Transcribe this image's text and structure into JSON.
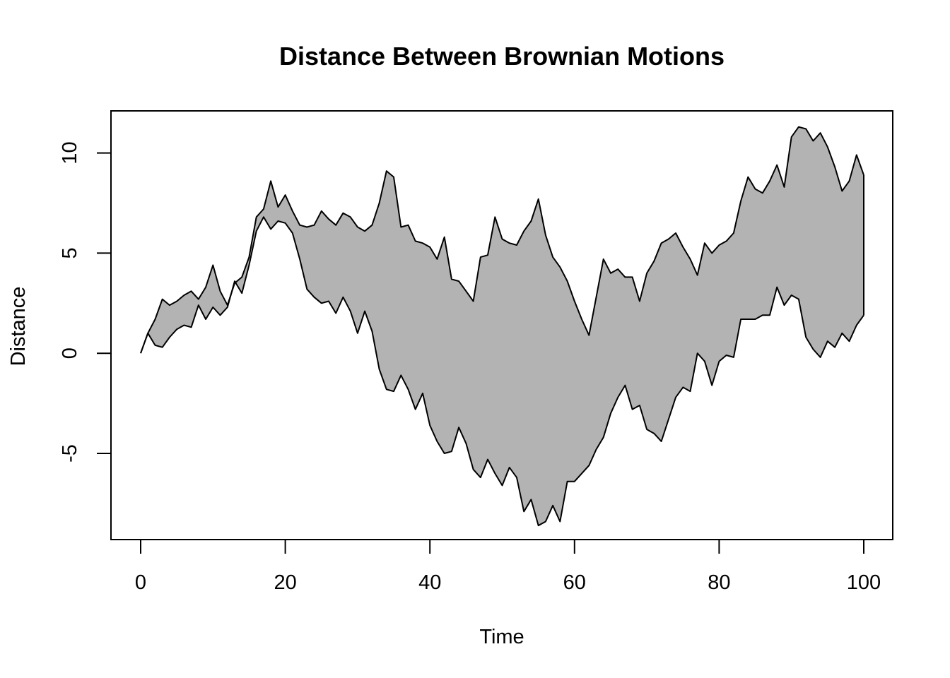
{
  "chart_data": {
    "type": "area",
    "title": "Distance Between Brownian Motions",
    "xlabel": "Time",
    "ylabel": "Distance",
    "xlim": [
      0,
      100
    ],
    "ylim": [
      -9.3,
      12.1
    ],
    "x_ticks": [
      0,
      20,
      40,
      60,
      80,
      100
    ],
    "y_ticks": [
      -5,
      0,
      5,
      10
    ],
    "x_tick_labels": [
      "0",
      "20",
      "40",
      "60",
      "80",
      "100"
    ],
    "y_tick_labels": [
      "-5",
      "0",
      "5",
      "10"
    ],
    "grid": false,
    "legend": "none",
    "fill_color": "#b3b3b3",
    "line_color": "#000000",
    "series": [
      {
        "values": [
          0,
          1.0,
          1.7,
          2.7,
          2.4,
          2.6,
          2.9,
          3.1,
          2.7,
          3.3,
          4.4,
          3.1,
          2.4,
          3.5,
          3.8,
          4.8,
          6.8,
          7.2,
          8.6,
          7.3,
          7.9,
          7.1,
          6.4,
          6.3,
          6.4,
          7.1,
          6.7,
          6.4,
          7.0,
          6.8,
          6.3,
          6.1,
          6.4,
          7.5,
          9.1,
          8.8,
          6.3,
          6.4,
          5.6,
          5.5,
          5.3,
          4.7,
          5.8,
          3.7,
          3.6,
          3.1,
          2.6,
          4.8,
          4.9,
          6.8,
          5.7,
          5.5,
          5.4,
          6.1,
          6.6,
          7.7,
          5.9,
          4.8,
          4.3,
          3.6,
          2.6,
          1.7,
          0.9,
          2.8,
          4.7,
          4.0,
          4.2,
          3.8,
          3.8,
          2.6,
          4.0,
          4.6,
          5.5,
          5.7,
          6.0,
          5.3,
          4.7,
          3.9,
          5.5,
          5.0,
          5.4,
          5.6,
          6.0,
          7.6,
          8.8,
          8.2,
          8.0,
          8.6,
          9.4,
          8.3,
          10.8,
          11.3,
          11.2,
          10.6,
          11.0,
          10.3,
          9.3,
          8.1,
          8.6,
          9.9,
          8.9
        ]
      },
      {
        "values": [
          0,
          1.0,
          0.4,
          0.3,
          0.8,
          1.2,
          1.4,
          1.3,
          2.4,
          1.7,
          2.3,
          1.9,
          2.3,
          3.6,
          3.0,
          4.4,
          6.1,
          6.8,
          6.2,
          6.6,
          6.5,
          6.0,
          4.7,
          3.2,
          2.8,
          2.5,
          2.6,
          2.0,
          2.8,
          2.1,
          1.0,
          2.1,
          1.1,
          -0.8,
          -1.8,
          -1.9,
          -1.1,
          -1.8,
          -2.8,
          -2.0,
          -3.6,
          -4.4,
          -5.0,
          -4.9,
          -3.7,
          -4.5,
          -5.8,
          -6.2,
          -5.3,
          -6.0,
          -6.6,
          -5.7,
          -6.2,
          -7.9,
          -7.3,
          -8.6,
          -8.4,
          -7.6,
          -8.4,
          -6.4,
          -6.4,
          -6.0,
          -5.6,
          -4.8,
          -4.2,
          -3.0,
          -2.2,
          -1.6,
          -2.8,
          -2.6,
          -3.8,
          -4.0,
          -4.4,
          -3.3,
          -2.2,
          -1.7,
          -1.9,
          0,
          -0.4,
          -1.6,
          -0.4,
          -0.1,
          -0.2,
          1.7,
          1.7,
          1.7,
          1.9,
          1.9,
          3.3,
          2.4,
          2.9,
          2.7,
          0.8,
          0.2,
          -0.2,
          0.6,
          0.3,
          1.0,
          0.6,
          1.4,
          1.9
        ]
      }
    ]
  }
}
